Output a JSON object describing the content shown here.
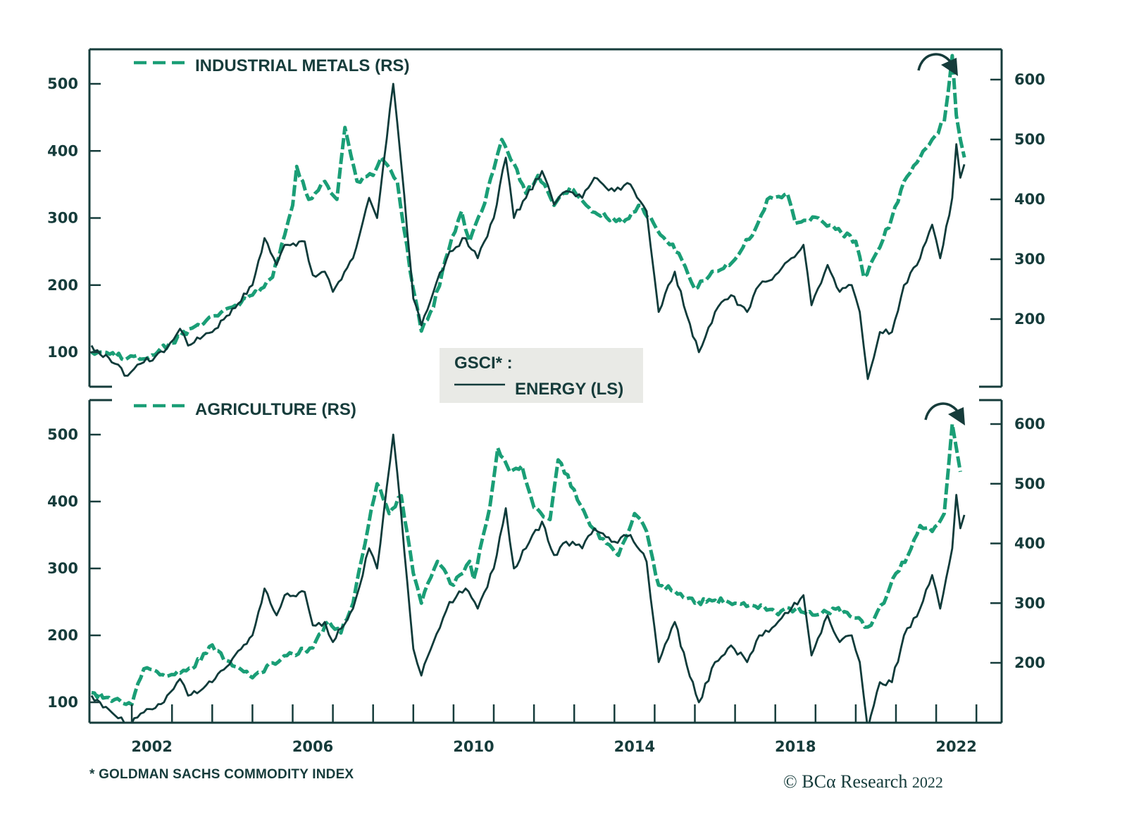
{
  "chart_data": [
    {
      "type": "line",
      "panel": "top",
      "title": "",
      "xlabel": "",
      "ylabel_left": "",
      "ylabel_right": "",
      "x_ticks_labels": [
        "2002",
        "2006",
        "2010",
        "2014",
        "2018",
        "2022"
      ],
      "xlim": [
        2001,
        2023.6
      ],
      "y_left": {
        "ticks": [
          100,
          200,
          300,
          400,
          500
        ],
        "range": [
          58,
          551
        ]
      },
      "y_right": {
        "ticks": [
          200,
          300,
          400,
          500,
          600
        ],
        "range": [
          100,
          650
        ]
      },
      "grid": false,
      "legend": [
        {
          "label": "INDUSTRIAL METALS (RS)",
          "style": "dashed",
          "color": "#1a9e76",
          "position": "top-left"
        }
      ],
      "annotation": "curved arrow pointing down at 2022 peak",
      "series": [
        {
          "name": "ENERGY (LS)",
          "axis": "left",
          "style": "solid",
          "color": "#0f3b3a",
          "x": [
            2001.0,
            2001.5,
            2001.9,
            2002.3,
            2002.8,
            2003.2,
            2003.4,
            2004.0,
            2004.5,
            2005.0,
            2005.3,
            2005.6,
            2005.8,
            2006.3,
            2006.5,
            2006.8,
            2007.0,
            2007.5,
            2007.9,
            2008.1,
            2008.5,
            2008.7,
            2009.0,
            2009.2,
            2009.5,
            2009.9,
            2010.3,
            2010.6,
            2011.0,
            2011.3,
            2011.5,
            2011.8,
            2012.2,
            2012.5,
            2012.8,
            2013.2,
            2013.5,
            2014.0,
            2014.4,
            2014.8,
            2015.0,
            2015.1,
            2015.5,
            2015.8,
            2016.1,
            2016.5,
            2016.9,
            2017.3,
            2017.6,
            2018.0,
            2018.4,
            2018.7,
            2018.9,
            2019.3,
            2019.6,
            2019.9,
            2020.1,
            2020.3,
            2020.6,
            2020.9,
            2021.2,
            2021.6,
            2021.9,
            2022.1,
            2022.4,
            2022.5,
            2022.6,
            2022.7
          ],
          "values": [
            110,
            85,
            65,
            85,
            100,
            135,
            110,
            130,
            165,
            200,
            270,
            230,
            260,
            265,
            215,
            220,
            190,
            240,
            330,
            300,
            500,
            380,
            180,
            140,
            190,
            250,
            270,
            240,
            300,
            390,
            300,
            330,
            370,
            320,
            340,
            330,
            360,
            340,
            350,
            310,
            210,
            160,
            220,
            155,
            100,
            160,
            185,
            160,
            200,
            215,
            240,
            260,
            170,
            230,
            190,
            200,
            160,
            60,
            130,
            130,
            200,
            240,
            290,
            240,
            330,
            410,
            360,
            380
          ]
        },
        {
          "name": "INDUSTRIAL METALS (RS)",
          "axis": "right",
          "style": "dashed",
          "color": "#1a9e76",
          "x": [
            2001.0,
            2001.9,
            2002.5,
            2003.0,
            2003.5,
            2004.0,
            2004.5,
            2005.0,
            2005.5,
            2005.8,
            2006.0,
            2006.1,
            2006.4,
            2006.8,
            2007.1,
            2007.3,
            2007.6,
            2008.0,
            2008.2,
            2008.6,
            2009.0,
            2009.2,
            2009.5,
            2009.8,
            2010.2,
            2010.4,
            2010.7,
            2011.0,
            2011.2,
            2011.5,
            2011.8,
            2012.1,
            2012.5,
            2012.9,
            2013.3,
            2013.8,
            2014.2,
            2014.6,
            2014.9,
            2015.3,
            2015.6,
            2016.0,
            2016.5,
            2017.0,
            2017.2,
            2017.5,
            2017.8,
            2018.3,
            2018.5,
            2019.0,
            2019.5,
            2020.0,
            2020.2,
            2020.6,
            2020.9,
            2021.2,
            2021.6,
            2021.9,
            2022.2,
            2022.4,
            2022.5,
            2022.6,
            2022.7
          ],
          "values": [
            145,
            135,
            140,
            160,
            185,
            205,
            220,
            240,
            270,
            340,
            390,
            455,
            400,
            430,
            400,
            520,
            430,
            440,
            470,
            430,
            250,
            180,
            220,
            300,
            380,
            330,
            380,
            450,
            500,
            460,
            410,
            440,
            390,
            420,
            390,
            370,
            360,
            390,
            370,
            330,
            310,
            250,
            280,
            300,
            320,
            350,
            400,
            410,
            360,
            370,
            350,
            330,
            270,
            320,
            370,
            430,
            470,
            500,
            530,
            640,
            540,
            500,
            470
          ]
        }
      ]
    },
    {
      "type": "line",
      "panel": "bottom",
      "title": "",
      "xlabel": "",
      "x_ticks_labels": [
        "2002",
        "2006",
        "2010",
        "2014",
        "2018",
        "2022"
      ],
      "xlim": [
        2001,
        2023.6
      ],
      "y_left": {
        "ticks": [
          100,
          200,
          300,
          400,
          500
        ],
        "range": [
          70,
          550
        ]
      },
      "y_right": {
        "ticks": [
          200,
          300,
          400,
          500,
          600
        ],
        "range": [
          99,
          640
        ]
      },
      "grid": false,
      "legend": [
        {
          "label": "AGRICULTURE (RS)",
          "style": "dashed",
          "color": "#1a9e76",
          "position": "top-left"
        }
      ],
      "annotation": "curved arrow pointing down at 2022 peak",
      "series": [
        {
          "name": "ENERGY (LS)",
          "axis": "left",
          "style": "solid",
          "color": "#0f3b3a",
          "x": [
            2001.0,
            2001.5,
            2001.9,
            2002.3,
            2002.8,
            2003.2,
            2003.4,
            2004.0,
            2004.5,
            2005.0,
            2005.3,
            2005.6,
            2005.8,
            2006.3,
            2006.5,
            2006.8,
            2007.0,
            2007.5,
            2007.9,
            2008.1,
            2008.5,
            2008.7,
            2009.0,
            2009.2,
            2009.5,
            2009.9,
            2010.3,
            2010.6,
            2011.0,
            2011.3,
            2011.5,
            2011.8,
            2012.2,
            2012.5,
            2012.8,
            2013.2,
            2013.5,
            2014.0,
            2014.4,
            2014.8,
            2015.0,
            2015.1,
            2015.5,
            2015.8,
            2016.1,
            2016.5,
            2016.9,
            2017.3,
            2017.6,
            2018.0,
            2018.4,
            2018.7,
            2018.9,
            2019.3,
            2019.6,
            2019.9,
            2020.1,
            2020.3,
            2020.6,
            2020.9,
            2021.2,
            2021.6,
            2021.9,
            2022.1,
            2022.4,
            2022.5,
            2022.6,
            2022.7
          ],
          "values": [
            110,
            85,
            65,
            85,
            100,
            135,
            110,
            130,
            165,
            200,
            270,
            230,
            260,
            265,
            215,
            220,
            190,
            240,
            330,
            300,
            500,
            380,
            180,
            140,
            190,
            250,
            270,
            240,
            300,
            390,
            300,
            330,
            370,
            320,
            340,
            330,
            360,
            340,
            350,
            310,
            210,
            160,
            220,
            155,
            100,
            160,
            185,
            160,
            200,
            215,
            240,
            260,
            170,
            230,
            190,
            200,
            160,
            60,
            130,
            130,
            200,
            240,
            290,
            240,
            330,
            410,
            360,
            380
          ]
        },
        {
          "name": "AGRICULTURE (RS)",
          "axis": "right",
          "style": "dashed",
          "color": "#1a9e76",
          "x": [
            2001.0,
            2002.0,
            2002.3,
            2002.7,
            2003.5,
            2004.0,
            2004.5,
            2005.0,
            2005.5,
            2006.0,
            2006.5,
            2006.9,
            2007.2,
            2007.5,
            2007.8,
            2008.1,
            2008.4,
            2008.7,
            2009.0,
            2009.2,
            2009.6,
            2010.0,
            2010.4,
            2010.5,
            2010.9,
            2011.1,
            2011.4,
            2011.7,
            2012.0,
            2012.4,
            2012.6,
            2013.0,
            2013.4,
            2013.8,
            2014.1,
            2014.5,
            2014.8,
            2015.1,
            2015.5,
            2016.0,
            2016.5,
            2017.0,
            2017.5,
            2018.0,
            2018.5,
            2019.0,
            2019.5,
            2020.0,
            2020.3,
            2020.7,
            2021.0,
            2021.3,
            2021.6,
            2021.9,
            2022.2,
            2022.4,
            2022.5,
            2022.6
          ],
          "values": [
            150,
            130,
            190,
            180,
            190,
            230,
            195,
            175,
            200,
            215,
            225,
            270,
            250,
            300,
            400,
            500,
            450,
            480,
            350,
            300,
            370,
            330,
            370,
            340,
            460,
            560,
            520,
            530,
            460,
            440,
            540,
            490,
            430,
            400,
            380,
            450,
            420,
            330,
            320,
            300,
            305,
            300,
            295,
            285,
            290,
            280,
            290,
            275,
            260,
            300,
            350,
            380,
            430,
            420,
            450,
            600,
            560,
            520
          ]
        }
      ]
    }
  ],
  "legend_box": {
    "title": "GSCI* :",
    "energy_label": "ENERGY (LS)"
  },
  "footnote": "* GOLDMAN SACHS COMMODITY INDEX",
  "copyright": {
    "symbol": "©",
    "brand": "BCα Research",
    "year": "2022"
  },
  "colors": {
    "energy": "#0f3b3a",
    "dashed": "#1a9e76",
    "axis": "#163c3b",
    "legend_bg": "#e9eae6"
  }
}
